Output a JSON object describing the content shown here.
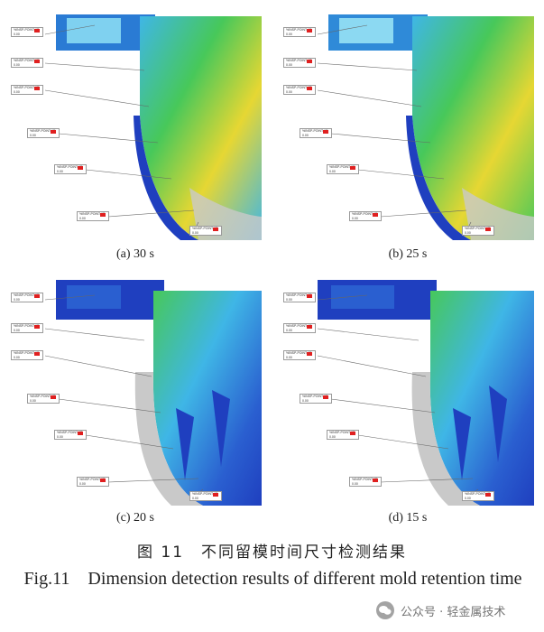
{
  "panels": [
    {
      "caption": "(a) 30 s"
    },
    {
      "caption": "(b) 25 s"
    },
    {
      "caption": "(c) 20 s"
    },
    {
      "caption": "(d) 15 s"
    }
  ],
  "callout": {
    "id_text": "%INSP-POINT-1R",
    "value_text": "0.00"
  },
  "caption_cn": "图 11　不同留模时间尺寸检测结果",
  "caption_en": "Fig.11　Dimension detection results of different mold retention time",
  "watermark": "公众号 · 轻金属技术",
  "colors": {
    "blue": "#1f3fbf",
    "cyan": "#3fb6e6",
    "green": "#47c85a",
    "yellow": "#e6d733",
    "red": "#e02020",
    "gray": "#c9c9c9"
  }
}
